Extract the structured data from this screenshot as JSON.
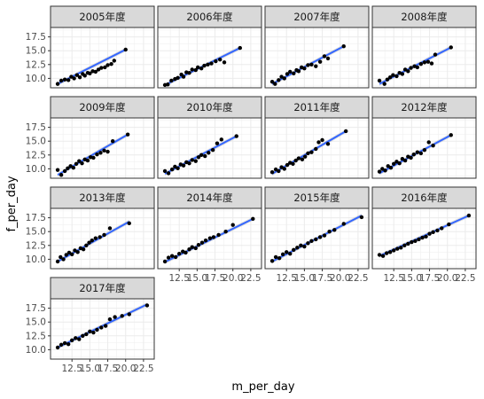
{
  "chart_data": {
    "type": "scatter",
    "xlabel": "m_per_day",
    "ylabel": "f_per_day",
    "xlim": [
      9.5,
      24
    ],
    "ylim": [
      8.3,
      19.2
    ],
    "xticks": [
      12.5,
      15.0,
      17.5,
      20.0,
      22.5
    ],
    "xtick_labels": [
      "12.5",
      "15.0",
      "17.5",
      "20.0",
      "22.5"
    ],
    "yticks": [
      10.0,
      12.5,
      15.0,
      17.5
    ],
    "ytick_labels": [
      "10.0",
      "12.5",
      "15.0",
      "17.5"
    ],
    "grid": true,
    "trend_color": "#3366ff",
    "point_color": "#000000",
    "panels": [
      {
        "label": "2005年度",
        "line": [
          [
            10.5,
            9.0
          ],
          [
            20.0,
            15.2
          ]
        ],
        "points": [
          [
            10.5,
            9.0
          ],
          [
            11.0,
            9.6
          ],
          [
            11.5,
            9.8
          ],
          [
            12.0,
            9.7
          ],
          [
            12.4,
            10.3
          ],
          [
            12.8,
            10.0
          ],
          [
            13.2,
            10.6
          ],
          [
            13.6,
            10.2
          ],
          [
            14.0,
            10.8
          ],
          [
            14.3,
            10.5
          ],
          [
            14.7,
            11.0
          ],
          [
            15.0,
            10.9
          ],
          [
            15.4,
            11.3
          ],
          [
            15.8,
            11.2
          ],
          [
            16.2,
            11.6
          ],
          [
            16.6,
            11.9
          ],
          [
            17.1,
            12.0
          ],
          [
            17.5,
            12.4
          ],
          [
            18.0,
            12.6
          ],
          [
            18.4,
            13.2
          ],
          [
            20.0,
            15.2
          ]
        ]
      },
      {
        "label": "2006年度",
        "line": [
          [
            10.5,
            8.8
          ],
          [
            21.0,
            15.5
          ]
        ],
        "points": [
          [
            10.5,
            8.8
          ],
          [
            10.9,
            8.9
          ],
          [
            11.4,
            9.6
          ],
          [
            11.9,
            9.9
          ],
          [
            12.3,
            10.1
          ],
          [
            12.8,
            10.7
          ],
          [
            13.1,
            10.3
          ],
          [
            13.5,
            11.1
          ],
          [
            13.9,
            11.0
          ],
          [
            14.3,
            11.6
          ],
          [
            14.8,
            11.5
          ],
          [
            15.1,
            12.0
          ],
          [
            15.6,
            11.8
          ],
          [
            16.0,
            12.3
          ],
          [
            16.5,
            12.5
          ],
          [
            17.0,
            12.7
          ],
          [
            17.6,
            13.1
          ],
          [
            18.2,
            13.4
          ],
          [
            18.8,
            12.9
          ],
          [
            21.0,
            15.5
          ]
        ]
      },
      {
        "label": "2007年度",
        "line": [
          [
            10.5,
            9.0
          ],
          [
            20.5,
            15.8
          ]
        ],
        "points": [
          [
            10.5,
            9.4
          ],
          [
            10.9,
            9.0
          ],
          [
            11.4,
            9.7
          ],
          [
            11.8,
            10.3
          ],
          [
            12.2,
            10.0
          ],
          [
            12.6,
            10.8
          ],
          [
            13.0,
            11.2
          ],
          [
            13.5,
            10.9
          ],
          [
            13.9,
            11.5
          ],
          [
            14.2,
            11.3
          ],
          [
            14.6,
            12.0
          ],
          [
            15.0,
            11.8
          ],
          [
            15.5,
            12.4
          ],
          [
            16.0,
            12.5
          ],
          [
            16.6,
            12.2
          ],
          [
            17.2,
            13.0
          ],
          [
            17.8,
            14.0
          ],
          [
            18.3,
            13.6
          ],
          [
            20.5,
            15.8
          ]
        ]
      },
      {
        "label": "2008年度",
        "line": [
          [
            10.5,
            9.0
          ],
          [
            20.5,
            15.6
          ]
        ],
        "points": [
          [
            10.5,
            9.6
          ],
          [
            11.2,
            9.0
          ],
          [
            11.6,
            9.8
          ],
          [
            12.0,
            10.2
          ],
          [
            12.4,
            10.6
          ],
          [
            12.9,
            10.4
          ],
          [
            13.3,
            11.0
          ],
          [
            13.7,
            10.8
          ],
          [
            14.1,
            11.6
          ],
          [
            14.5,
            11.3
          ],
          [
            14.9,
            11.9
          ],
          [
            15.4,
            12.2
          ],
          [
            15.8,
            12.0
          ],
          [
            16.3,
            12.6
          ],
          [
            16.8,
            12.9
          ],
          [
            17.3,
            13.0
          ],
          [
            17.8,
            12.7
          ],
          [
            18.3,
            14.3
          ],
          [
            20.5,
            15.6
          ]
        ]
      },
      {
        "label": "2009年度",
        "line": [
          [
            10.5,
            8.9
          ],
          [
            20.3,
            16.2
          ]
        ],
        "points": [
          [
            10.5,
            9.8
          ],
          [
            11.0,
            8.9
          ],
          [
            11.5,
            9.6
          ],
          [
            11.9,
            10.1
          ],
          [
            12.3,
            10.5
          ],
          [
            12.7,
            10.2
          ],
          [
            13.1,
            10.9
          ],
          [
            13.5,
            11.4
          ],
          [
            13.9,
            11.0
          ],
          [
            14.3,
            11.7
          ],
          [
            14.7,
            11.5
          ],
          [
            15.1,
            12.1
          ],
          [
            15.5,
            12.0
          ],
          [
            16.0,
            12.6
          ],
          [
            16.5,
            12.9
          ],
          [
            17.0,
            13.3
          ],
          [
            17.5,
            13.1
          ],
          [
            18.2,
            15.0
          ],
          [
            20.3,
            16.2
          ]
        ]
      },
      {
        "label": "2010年度",
        "line": [
          [
            10.5,
            9.1
          ],
          [
            20.5,
            15.9
          ]
        ],
        "points": [
          [
            10.5,
            9.6
          ],
          [
            11.0,
            9.2
          ],
          [
            11.5,
            9.9
          ],
          [
            11.9,
            10.4
          ],
          [
            12.3,
            10.1
          ],
          [
            12.7,
            10.8
          ],
          [
            13.1,
            10.6
          ],
          [
            13.5,
            11.2
          ],
          [
            13.9,
            11.0
          ],
          [
            14.3,
            11.6
          ],
          [
            14.8,
            11.4
          ],
          [
            15.2,
            12.1
          ],
          [
            15.6,
            12.5
          ],
          [
            16.1,
            12.3
          ],
          [
            16.6,
            12.9
          ],
          [
            17.2,
            13.4
          ],
          [
            17.8,
            14.6
          ],
          [
            18.4,
            15.3
          ],
          [
            20.5,
            15.9
          ]
        ]
      },
      {
        "label": "2011年度",
        "line": [
          [
            10.5,
            9.1
          ],
          [
            20.8,
            16.8
          ]
        ],
        "points": [
          [
            10.5,
            9.4
          ],
          [
            11.0,
            9.9
          ],
          [
            11.4,
            9.6
          ],
          [
            11.8,
            10.3
          ],
          [
            12.2,
            10.0
          ],
          [
            12.6,
            10.7
          ],
          [
            13.0,
            11.1
          ],
          [
            13.4,
            10.9
          ],
          [
            13.8,
            11.5
          ],
          [
            14.2,
            11.9
          ],
          [
            14.7,
            11.7
          ],
          [
            15.1,
            12.2
          ],
          [
            15.5,
            12.8
          ],
          [
            16.0,
            13.0
          ],
          [
            16.6,
            13.6
          ],
          [
            17.0,
            14.8
          ],
          [
            17.5,
            15.2
          ],
          [
            18.3,
            14.5
          ],
          [
            20.8,
            16.8
          ]
        ]
      },
      {
        "label": "2012年度",
        "line": [
          [
            10.5,
            9.2
          ],
          [
            20.5,
            16.1
          ]
        ],
        "points": [
          [
            10.5,
            9.5
          ],
          [
            10.9,
            10.0
          ],
          [
            11.3,
            9.7
          ],
          [
            11.7,
            10.5
          ],
          [
            12.1,
            10.2
          ],
          [
            12.5,
            10.9
          ],
          [
            12.9,
            11.3
          ],
          [
            13.3,
            11.0
          ],
          [
            13.7,
            11.8
          ],
          [
            14.1,
            11.5
          ],
          [
            14.5,
            12.2
          ],
          [
            14.9,
            12.0
          ],
          [
            15.3,
            12.6
          ],
          [
            15.8,
            13.0
          ],
          [
            16.3,
            12.8
          ],
          [
            16.8,
            13.4
          ],
          [
            17.4,
            14.8
          ],
          [
            18.0,
            14.2
          ],
          [
            20.5,
            16.1
          ]
        ]
      },
      {
        "label": "2013年度",
        "line": [
          [
            10.5,
            9.6
          ],
          [
            20.5,
            16.8
          ]
        ],
        "points": [
          [
            10.5,
            9.6
          ],
          [
            10.9,
            10.4
          ],
          [
            11.3,
            10.0
          ],
          [
            11.7,
            10.8
          ],
          [
            12.1,
            11.2
          ],
          [
            12.5,
            10.9
          ],
          [
            12.9,
            11.6
          ],
          [
            13.3,
            11.3
          ],
          [
            13.7,
            12.0
          ],
          [
            14.1,
            11.8
          ],
          [
            14.5,
            12.5
          ],
          [
            14.9,
            13.0
          ],
          [
            15.3,
            13.4
          ],
          [
            15.8,
            13.8
          ],
          [
            16.4,
            14.0
          ],
          [
            17.0,
            14.4
          ],
          [
            17.8,
            15.6
          ],
          [
            20.5,
            16.5
          ]
        ]
      },
      {
        "label": "2014年度",
        "line": [
          [
            10.5,
            9.5
          ],
          [
            22.8,
            17.3
          ]
        ],
        "points": [
          [
            10.5,
            9.6
          ],
          [
            11.0,
            10.3
          ],
          [
            11.5,
            10.6
          ],
          [
            12.0,
            10.4
          ],
          [
            12.5,
            11.0
          ],
          [
            13.0,
            11.4
          ],
          [
            13.4,
            11.2
          ],
          [
            13.9,
            11.8
          ],
          [
            14.3,
            12.2
          ],
          [
            14.8,
            12.0
          ],
          [
            15.2,
            12.6
          ],
          [
            15.7,
            13.0
          ],
          [
            16.2,
            13.4
          ],
          [
            16.8,
            13.8
          ],
          [
            17.3,
            14.0
          ],
          [
            18.0,
            14.4
          ],
          [
            19.0,
            15.0
          ],
          [
            20.0,
            16.2
          ],
          [
            22.8,
            17.3
          ]
        ]
      },
      {
        "label": "2015年度",
        "line": [
          [
            10.5,
            9.6
          ],
          [
            23.0,
            17.9
          ]
        ],
        "points": [
          [
            10.5,
            9.7
          ],
          [
            11.0,
            10.4
          ],
          [
            11.5,
            10.2
          ],
          [
            12.0,
            10.9
          ],
          [
            12.5,
            11.3
          ],
          [
            13.0,
            11.0
          ],
          [
            13.5,
            11.7
          ],
          [
            14.0,
            12.1
          ],
          [
            14.5,
            12.5
          ],
          [
            15.0,
            12.3
          ],
          [
            15.5,
            12.9
          ],
          [
            16.0,
            13.3
          ],
          [
            16.6,
            13.6
          ],
          [
            17.2,
            14.0
          ],
          [
            17.8,
            14.3
          ],
          [
            18.5,
            15.0
          ],
          [
            19.2,
            15.3
          ],
          [
            20.5,
            16.4
          ],
          [
            23.0,
            17.6
          ]
        ]
      },
      {
        "label": "2016年度",
        "line": [
          [
            10.5,
            10.6
          ],
          [
            23.0,
            17.9
          ]
        ],
        "points": [
          [
            10.5,
            10.8
          ],
          [
            11.0,
            10.6
          ],
          [
            11.5,
            11.1
          ],
          [
            12.0,
            11.3
          ],
          [
            12.5,
            11.6
          ],
          [
            13.0,
            11.9
          ],
          [
            13.5,
            12.1
          ],
          [
            14.0,
            12.5
          ],
          [
            14.5,
            12.8
          ],
          [
            15.0,
            13.1
          ],
          [
            15.5,
            13.3
          ],
          [
            16.0,
            13.6
          ],
          [
            16.5,
            13.9
          ],
          [
            17.0,
            14.1
          ],
          [
            17.5,
            14.6
          ],
          [
            18.0,
            14.9
          ],
          [
            18.6,
            15.2
          ],
          [
            19.2,
            15.6
          ],
          [
            20.2,
            16.3
          ],
          [
            23.0,
            17.9
          ]
        ]
      },
      {
        "label": "2017年度",
        "line": [
          [
            10.5,
            10.4
          ],
          [
            23.0,
            18.2
          ]
        ],
        "points": [
          [
            10.5,
            10.4
          ],
          [
            11.0,
            10.9
          ],
          [
            11.5,
            11.2
          ],
          [
            12.0,
            11.0
          ],
          [
            12.5,
            11.7
          ],
          [
            13.0,
            12.1
          ],
          [
            13.5,
            11.9
          ],
          [
            14.0,
            12.5
          ],
          [
            14.5,
            12.8
          ],
          [
            15.0,
            13.3
          ],
          [
            15.5,
            13.1
          ],
          [
            16.0,
            13.6
          ],
          [
            16.6,
            14.0
          ],
          [
            17.2,
            14.3
          ],
          [
            17.8,
            15.5
          ],
          [
            18.5,
            15.9
          ],
          [
            19.5,
            16.1
          ],
          [
            20.5,
            16.4
          ],
          [
            23.0,
            18.0
          ]
        ]
      }
    ]
  }
}
